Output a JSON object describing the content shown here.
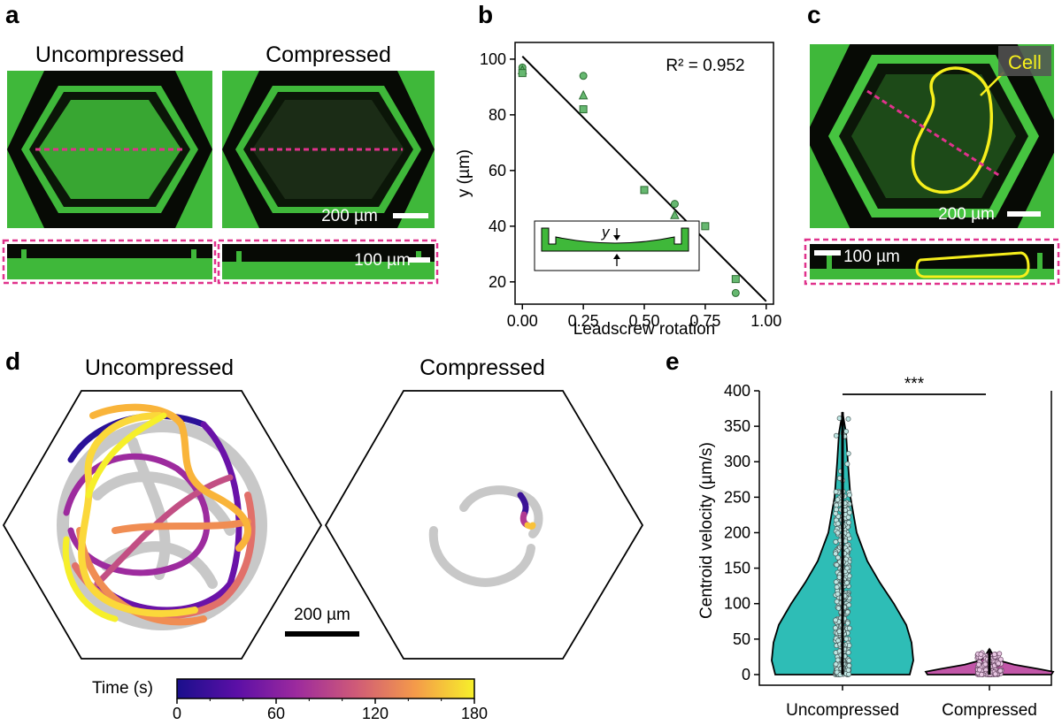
{
  "panels": {
    "a": {
      "label": "a",
      "uncompressed_title": "Uncompressed",
      "compressed_title": "Compressed",
      "scalebar_top": "200 µm",
      "scalebar_bottom": "100 µm"
    },
    "b": {
      "label": "b",
      "inset_y_label": "y"
    },
    "c": {
      "label": "c",
      "cell_label": "Cell",
      "scalebar_top": "200 µm",
      "scalebar_bottom": "100 µm"
    },
    "d": {
      "label": "d",
      "uncompressed_title": "Uncompressed",
      "compressed_title": "Compressed",
      "scalebar": "200 µm",
      "colorbar_label": "Time (s)",
      "colorbar_ticks": [
        "0",
        "60",
        "120",
        "180"
      ]
    },
    "e": {
      "label": "e",
      "significance": "***"
    }
  },
  "colors": {
    "fluorescence_green": "#3fb83a",
    "dark": "#070a05",
    "dashed_line": "#e0328c",
    "cell_outline": "#f6ef1c",
    "violin_uncompressed": "#2ebdb6",
    "violin_compressed": "#c256a8",
    "marker_fill": "#66b870"
  },
  "chart_data": [
    {
      "id": "b",
      "type": "scatter",
      "title": "",
      "xlabel": "Leadscrew rotation",
      "ylabel": "y (µm)",
      "xlim": [
        -0.03,
        1.03
      ],
      "ylim": [
        12,
        106
      ],
      "xticks": [
        "0.00",
        "0.25",
        "0.50",
        "0.75",
        "1.00"
      ],
      "yticks": [
        "20",
        "40",
        "60",
        "80",
        "100"
      ],
      "annotation": "R² = 0.952",
      "series": [
        {
          "name": "circle",
          "marker": "circle",
          "x": [
            0,
            0.25,
            0.625,
            0.875
          ],
          "y": [
            97,
            94,
            48,
            16
          ]
        },
        {
          "name": "triangle",
          "marker": "triangle",
          "x": [
            0,
            0.25,
            0.625
          ],
          "y": [
            96,
            87,
            44
          ]
        },
        {
          "name": "square",
          "marker": "square",
          "x": [
            0,
            0.25,
            0.5,
            0.75,
            0.875
          ],
          "y": [
            95,
            82,
            53,
            40,
            21
          ]
        }
      ],
      "fit_line": {
        "x": [
          0,
          1
        ],
        "y": [
          101,
          13
        ]
      }
    },
    {
      "id": "e",
      "type": "violin",
      "xlabel": "",
      "ylabel": "Centroid velocity (µm/s)",
      "ylim": [
        -15,
        400
      ],
      "yticks": [
        "0",
        "50",
        "100",
        "150",
        "200",
        "250",
        "300",
        "350",
        "400"
      ],
      "categories": [
        "Uncompressed",
        "Compressed"
      ],
      "groups": [
        {
          "name": "Uncompressed",
          "min": 0,
          "max": 370,
          "median": 75
        },
        {
          "name": "Compressed",
          "min": 0,
          "max": 36,
          "median": 4
        }
      ],
      "significance": "***"
    }
  ]
}
